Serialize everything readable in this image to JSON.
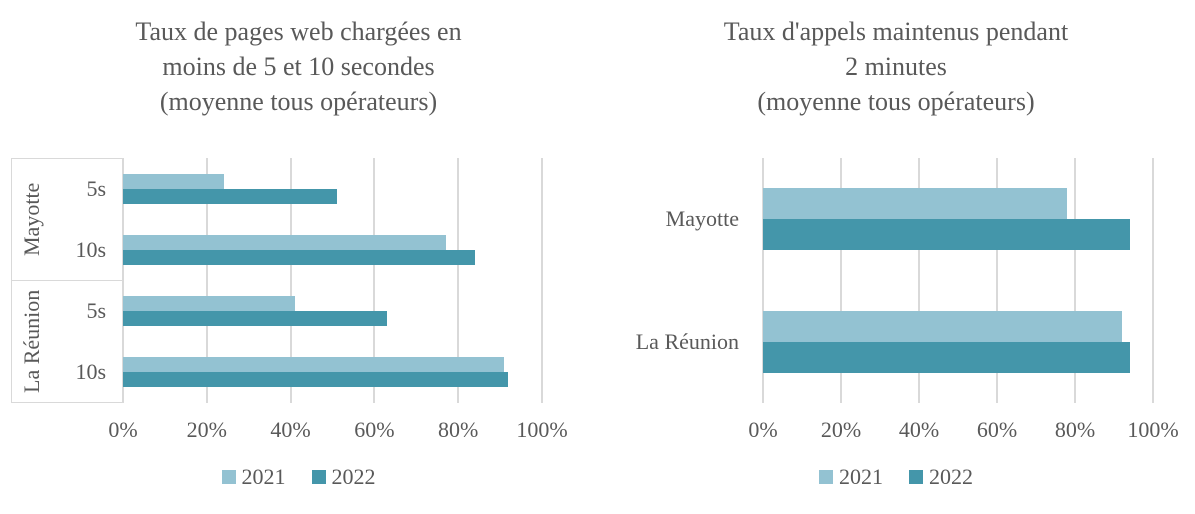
{
  "page": {
    "background": "#ffffff"
  },
  "colors": {
    "series_2021": "#93c2d2",
    "series_2022": "#4496aa",
    "gridline": "#d9d9d9",
    "axis_box_border": "#d9d9d9",
    "text": "#595959"
  },
  "chart_data": [
    {
      "type": "bar",
      "orientation": "horizontal",
      "title": "Taux de pages web chargées en\nmoins de 5 et 10 secondes\n(moyenne tous opérateurs)",
      "category_groups": [
        {
          "label": "Mayotte",
          "rows": [
            "5s",
            "10s"
          ]
        },
        {
          "label": "La Réunion",
          "rows": [
            "5s",
            "10s"
          ]
        }
      ],
      "series": [
        {
          "name": "2021",
          "color": "#93c2d2",
          "values": [
            24,
            77,
            41,
            91
          ]
        },
        {
          "name": "2022",
          "color": "#4496aa",
          "values": [
            51,
            84,
            63,
            92
          ]
        }
      ],
      "xlim": [
        0,
        100
      ],
      "x_ticks": [
        "0%",
        "20%",
        "40%",
        "60%",
        "80%",
        "100%"
      ],
      "grid": true,
      "legend_position": "bottom"
    },
    {
      "type": "bar",
      "orientation": "horizontal",
      "title": "Taux d'appels maintenus pendant\n2 minutes\n(moyenne tous opérateurs)",
      "categories": [
        "Mayotte",
        "La Réunion"
      ],
      "series": [
        {
          "name": "2021",
          "color": "#93c2d2",
          "values": [
            78,
            92
          ]
        },
        {
          "name": "2022",
          "color": "#4496aa",
          "values": [
            94,
            94
          ]
        }
      ],
      "xlim": [
        0,
        100
      ],
      "x_ticks": [
        "0%",
        "20%",
        "40%",
        "60%",
        "80%",
        "100%"
      ],
      "grid": true,
      "legend_position": "bottom"
    }
  ]
}
